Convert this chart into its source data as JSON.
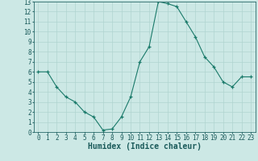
{
  "x": [
    0,
    1,
    2,
    3,
    4,
    5,
    6,
    7,
    8,
    9,
    10,
    11,
    12,
    13,
    14,
    15,
    16,
    17,
    18,
    19,
    20,
    21,
    22,
    23
  ],
  "y": [
    6.0,
    6.0,
    4.5,
    3.5,
    3.0,
    2.0,
    1.5,
    0.2,
    0.3,
    1.5,
    3.5,
    7.0,
    8.5,
    13.0,
    12.8,
    12.5,
    11.0,
    9.5,
    7.5,
    6.5,
    5.0,
    4.5,
    5.5,
    5.5
  ],
  "xlabel": "Humidex (Indice chaleur)",
  "line_color": "#1a7a6a",
  "marker_color": "#1a7a6a",
  "bg_color": "#cce8e5",
  "grid_color": "#b0d4d0",
  "axis_color": "#2a6a6a",
  "tick_label_color": "#1a5a5a",
  "xlim": [
    -0.5,
    23.5
  ],
  "ylim": [
    0,
    13
  ],
  "xticks": [
    0,
    1,
    2,
    3,
    4,
    5,
    6,
    7,
    8,
    9,
    10,
    11,
    12,
    13,
    14,
    15,
    16,
    17,
    18,
    19,
    20,
    21,
    22,
    23
  ],
  "yticks": [
    0,
    1,
    2,
    3,
    4,
    5,
    6,
    7,
    8,
    9,
    10,
    11,
    12,
    13
  ],
  "fontsize_ticks": 5.5,
  "fontsize_label": 7.0
}
